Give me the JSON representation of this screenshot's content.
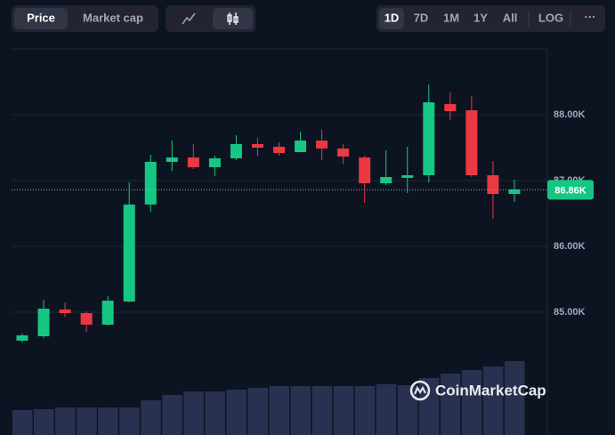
{
  "toolbar": {
    "metric_tabs": [
      "Price",
      "Market cap"
    ],
    "ranges": [
      "1D",
      "7D",
      "1M",
      "1Y",
      "All"
    ],
    "log": "LOG",
    "more": "···"
  },
  "watermark": "CoinMarketCap",
  "chart_data": {
    "type": "candlestick",
    "open": [
      84568,
      84635,
      85041,
      84986,
      84811,
      85163,
      86636,
      87284,
      87351,
      87203,
      87338,
      87554,
      87514,
      87432,
      87608,
      87487,
      87351,
      86959,
      87041,
      87081,
      88162,
      88068,
      87081,
      86797
    ],
    "high": [
      84676,
      85189,
      85149,
      85014,
      85244,
      86973,
      87392,
      87608,
      87554,
      87378,
      87689,
      87649,
      87581,
      87743,
      87770,
      87554,
      87378,
      87460,
      87514,
      88459,
      88338,
      88284,
      87297,
      87014
    ],
    "low": [
      84541,
      84608,
      84933,
      84703,
      84798,
      85149,
      86527,
      87149,
      87176,
      87068,
      87311,
      87378,
      87378,
      87432,
      87311,
      87257,
      86662,
      86932,
      86811,
      86973,
      87919,
      87054,
      86419,
      86676
    ],
    "close": [
      84649,
      85054,
      84986,
      84811,
      85176,
      86636,
      87284,
      87351,
      87203,
      87338,
      87554,
      87500,
      87419,
      87608,
      87487,
      87365,
      86959,
      87054,
      87081,
      88189,
      88054,
      87081,
      86797,
      86865
    ],
    "volume": [
      28,
      29,
      31,
      31,
      31,
      31,
      39,
      45,
      49,
      49,
      51,
      53,
      55,
      55,
      55,
      55,
      55,
      57,
      56,
      64,
      69,
      73,
      77,
      83
    ],
    "volume_lim": [
      0,
      200
    ],
    "up_color": "#16c784",
    "down_color": "#ea3943",
    "volume_color": "#293150",
    "ylim": [
      83135,
      89000
    ],
    "yticks": [
      {
        "value": 85000,
        "label": "85.00K"
      },
      {
        "value": 86000,
        "label": "86.00K"
      },
      {
        "value": 87000,
        "label": "87.00K"
      },
      {
        "value": 88000,
        "label": "88.00K"
      }
    ],
    "grid": true,
    "last_price": {
      "value": 86860,
      "label": "86.86K"
    }
  }
}
